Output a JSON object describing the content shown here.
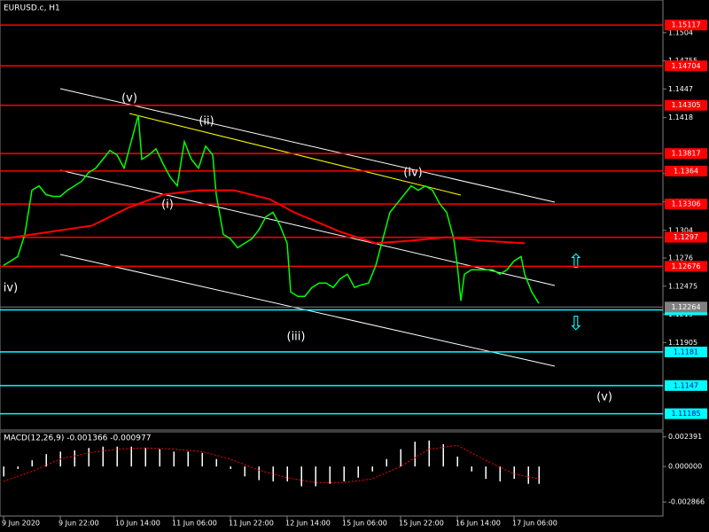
{
  "chart_data": [
    {
      "type": "line",
      "title": "EURUSD.c, H1",
      "x": [
        0,
        4,
        6,
        8,
        10,
        12,
        14,
        16,
        18,
        20,
        22,
        24,
        26,
        28,
        30,
        32,
        34,
        36,
        38,
        39,
        41,
        43,
        45,
        47,
        49,
        51,
        53,
        55,
        57,
        59,
        60,
        62,
        64,
        66,
        68,
        70,
        72,
        74,
        76,
        78,
        80,
        81,
        83,
        85,
        87,
        89,
        91,
        93,
        95,
        97,
        99,
        101,
        103,
        105,
        107,
        109,
        111,
        113,
        115,
        117,
        119,
        121,
        123,
        125,
        127,
        128,
        129,
        130,
        132,
        134,
        136,
        138,
        140,
        142,
        144,
        146,
        147,
        149,
        151
      ],
      "series": [
        {
          "color": "#00ff00",
          "values": [
            1.12685,
            1.12775,
            1.12998,
            1.13445,
            1.1349,
            1.13401,
            1.13383,
            1.13383,
            1.13445,
            1.1349,
            1.13535,
            1.13624,
            1.13669,
            1.13758,
            1.13848,
            1.13803,
            1.13669,
            1.13937,
            1.14205,
            1.13758,
            1.13803,
            1.13865,
            1.13713,
            1.13579,
            1.1349,
            1.13937,
            1.13758,
            1.13669,
            1.13892,
            1.13803,
            1.13401,
            1.12998,
            1.12954,
            1.12864,
            1.12909,
            1.12954,
            1.13043,
            1.13177,
            1.13222,
            1.13088,
            1.12909,
            1.12417,
            1.12372,
            1.12372,
            1.12462,
            1.12507,
            1.12507,
            1.12462,
            1.12551,
            1.12596,
            1.12462,
            1.12489,
            1.12507,
            1.12685,
            1.12954,
            1.13222,
            1.13311,
            1.13401,
            1.1349,
            1.13445,
            1.1349,
            1.13445,
            1.13311,
            1.13222,
            1.12954,
            1.12685,
            1.12328,
            1.12596,
            1.12641,
            1.12641,
            1.12641,
            1.12641,
            1.12596,
            1.12641,
            1.1273,
            1.12775,
            1.12596,
            1.12417,
            1.12301
          ]
        },
        {
          "color": "#ff0000",
          "x": [
            0,
            8,
            25,
            35,
            45,
            55,
            65,
            75,
            82,
            95,
            105,
            115,
            125,
            135,
            147
          ],
          "values": [
            1.12954,
            1.12998,
            1.13088,
            1.13266,
            1.13401,
            1.13445,
            1.13445,
            1.13356,
            1.13222,
            1.13025,
            1.12909,
            1.12936,
            1.12971,
            1.12936,
            1.12909
          ]
        }
      ],
      "xlim": [
        -1,
        186
      ],
      "xticks": [
        {
          "value": 0,
          "label": "9 Jun 2020"
        },
        {
          "value": 16,
          "label": "9 Jun 22:00"
        },
        {
          "value": 32,
          "label": "10 Jun 14:00"
        },
        {
          "value": 48,
          "label": "11 Jun 06:00"
        },
        {
          "value": 64,
          "label": "11 Jun 22:00"
        },
        {
          "value": 80,
          "label": "12 Jun 14:00"
        },
        {
          "value": 96,
          "label": "15 Jun 06:00"
        },
        {
          "value": 112,
          "label": "15 Jun 22:00"
        },
        {
          "value": 128,
          "label": "16 Jun 14:00"
        },
        {
          "value": 144,
          "label": "17 Jun 06:00"
        }
      ],
      "ylim": [
        1.1102,
        1.1537
      ],
      "yticks": [
        1.1504,
        1.14755,
        1.1447,
        1.1418,
        1.13615,
        1.1333,
        1.1304,
        1.1276,
        1.12475,
        1.1219,
        1.11905
      ],
      "hlines": [
        {
          "color": "#ff0000",
          "values": [
            1.15117,
            1.14704,
            1.14305,
            1.13817,
            1.1364,
            1.13306,
            1.1297,
            1.12676
          ]
        },
        {
          "color": "#00ffff",
          "values": [
            1.12235,
            1.1181,
            1.1147,
            1.11185
          ]
        }
      ],
      "last_price": 1.12264,
      "annotations": [
        "(v)",
        "(ii)",
        "(i)",
        "(iv)",
        "(iii)",
        "iv)",
        "(v)"
      ]
    },
    {
      "type": "bar",
      "title": "MACD(12,26,9) -0.001366 -0.000977",
      "x": [
        0,
        4,
        8,
        12,
        16,
        20,
        24,
        28,
        32,
        36,
        40,
        44,
        48,
        52,
        56,
        60,
        64,
        68,
        72,
        76,
        80,
        84,
        88,
        92,
        96,
        100,
        104,
        108,
        112,
        116,
        120,
        124,
        128,
        132,
        136,
        140,
        144,
        148,
        151
      ],
      "values": [
        -0.0008,
        -0.0002,
        0.0005,
        0.001,
        0.0012,
        0.0013,
        0.0015,
        0.0016,
        0.0016,
        0.0016,
        0.0015,
        0.0014,
        0.0012,
        0.0012,
        0.0011,
        0.0006,
        -0.0002,
        -0.0008,
        -0.0011,
        -0.0012,
        -0.0012,
        -0.0016,
        -0.0016,
        -0.0014,
        -0.0012,
        -0.0009,
        -0.0004,
        0.0006,
        0.0014,
        0.002,
        0.0021,
        0.0018,
        0.0008,
        -0.0004,
        -0.001,
        -0.0012,
        -0.001,
        -0.0014,
        -0.0014
      ],
      "color": "#ffffff",
      "signal": {
        "color": "#ff0000",
        "x": [
          0,
          8,
          16,
          24,
          32,
          40,
          48,
          56,
          64,
          72,
          80,
          88,
          96,
          104,
          112,
          120,
          128,
          136,
          144,
          151
        ],
        "values": [
          -0.0012,
          -0.0004,
          0.0006,
          0.0011,
          0.0014,
          0.0015,
          0.0014,
          0.0012,
          0.0006,
          -0.0003,
          -0.0009,
          -0.0013,
          -0.0013,
          -0.001,
          0.0,
          0.0014,
          0.0017,
          0.0005,
          -0.0006,
          -0.001
        ]
      },
      "ylim": [
        -0.004,
        0.0028
      ],
      "yticks": [
        0.002391,
        {
          "value": 0,
          "label": "0.000000"
        },
        -0.002866
      ]
    }
  ]
}
